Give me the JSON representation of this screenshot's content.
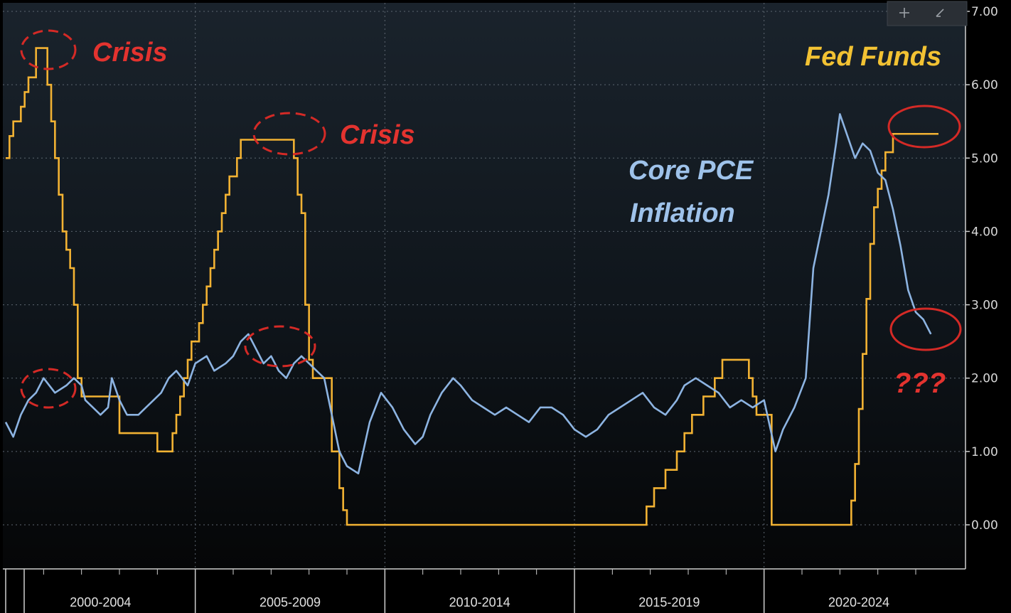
{
  "toolbar": {
    "crosshair_icon": "crosshair-icon",
    "zoom_icon": "zoom-icon"
  },
  "chart_data": {
    "type": "line",
    "title": "",
    "xlabel": "",
    "ylabel": "",
    "x_range": [
      2000.0,
      2024.6
    ],
    "ylim": [
      -0.6,
      7.0
    ],
    "y_ticks": [
      "0.00",
      "1.00",
      "2.00",
      "3.00",
      "4.00",
      "5.00",
      "6.00",
      "7.00"
    ],
    "x_periods": [
      "2000-2004",
      "2005-2009",
      "2010-2014",
      "2015-2019",
      "2020-2024"
    ],
    "grid": true,
    "series": [
      {
        "name": "Fed Funds",
        "color": "#f2b233",
        "x": [
          2000.0,
          2000.1,
          2000.2,
          2000.4,
          2000.5,
          2000.6,
          2000.8,
          2001.0,
          2001.1,
          2001.2,
          2001.3,
          2001.4,
          2001.5,
          2001.6,
          2001.7,
          2001.8,
          2001.9,
          2002.0,
          2002.8,
          2003.0,
          2003.5,
          2004.0,
          2004.3,
          2004.4,
          2004.5,
          2004.6,
          2004.7,
          2004.8,
          2004.9,
          2005.0,
          2005.1,
          2005.2,
          2005.3,
          2005.4,
          2005.5,
          2005.6,
          2005.7,
          2005.8,
          2005.9,
          2006.0,
          2006.1,
          2006.2,
          2006.3,
          2006.4,
          2006.5,
          2007.6,
          2007.7,
          2007.8,
          2007.9,
          2008.0,
          2008.1,
          2008.2,
          2008.3,
          2008.6,
          2008.8,
          2008.9,
          2009.0,
          2015.9,
          2016.9,
          2017.1,
          2017.4,
          2017.7,
          2017.9,
          2018.1,
          2018.4,
          2018.7,
          2018.9,
          2019.5,
          2019.6,
          2019.7,
          2019.8,
          2020.1,
          2020.2,
          2022.2,
          2022.3,
          2022.4,
          2022.5,
          2022.6,
          2022.7,
          2022.8,
          2022.9,
          2023.0,
          2023.1,
          2023.2,
          2023.4,
          2023.6,
          2024.6
        ],
        "values": [
          5.0,
          5.3,
          5.5,
          5.7,
          5.9,
          6.1,
          6.5,
          6.5,
          6.0,
          5.5,
          5.0,
          4.5,
          4.0,
          3.75,
          3.5,
          3.0,
          2.0,
          1.75,
          1.75,
          1.25,
          1.25,
          1.0,
          1.0,
          1.25,
          1.5,
          1.75,
          2.0,
          2.25,
          2.5,
          2.5,
          2.75,
          3.0,
          3.25,
          3.5,
          3.75,
          4.0,
          4.25,
          4.5,
          4.75,
          4.75,
          5.0,
          5.25,
          5.25,
          5.25,
          5.25,
          5.0,
          4.5,
          4.25,
          3.0,
          2.25,
          2.0,
          2.0,
          2.0,
          1.0,
          0.5,
          0.2,
          0.0,
          0.0,
          0.25,
          0.5,
          0.75,
          1.0,
          1.25,
          1.5,
          1.75,
          2.0,
          2.25,
          2.25,
          2.0,
          1.75,
          1.5,
          1.5,
          0.0,
          0.0,
          0.33,
          0.83,
          1.58,
          2.33,
          3.08,
          3.83,
          4.33,
          4.58,
          4.83,
          5.08,
          5.33,
          5.33,
          5.33
        ]
      },
      {
        "name": "Core PCE Inflation",
        "color": "#8db4e2",
        "x": [
          2000.0,
          2000.2,
          2000.4,
          2000.6,
          2000.8,
          2001.0,
          2001.3,
          2001.6,
          2001.8,
          2002.0,
          2002.1,
          2002.3,
          2002.5,
          2002.7,
          2002.8,
          2003.0,
          2003.2,
          2003.5,
          2003.7,
          2003.9,
          2004.1,
          2004.3,
          2004.5,
          2004.8,
          2005.0,
          2005.3,
          2005.5,
          2005.8,
          2006.0,
          2006.2,
          2006.4,
          2006.6,
          2006.8,
          2007.0,
          2007.2,
          2007.4,
          2007.6,
          2007.8,
          2008.0,
          2008.2,
          2008.4,
          2008.6,
          2008.8,
          2009.0,
          2009.3,
          2009.6,
          2009.9,
          2010.2,
          2010.5,
          2010.8,
          2011.0,
          2011.2,
          2011.5,
          2011.8,
          2012.0,
          2012.3,
          2012.6,
          2012.9,
          2013.2,
          2013.5,
          2013.8,
          2014.1,
          2014.4,
          2014.7,
          2015.0,
          2015.3,
          2015.6,
          2015.9,
          2016.2,
          2016.5,
          2016.8,
          2017.1,
          2017.4,
          2017.7,
          2017.9,
          2018.2,
          2018.5,
          2018.8,
          2019.1,
          2019.4,
          2019.7,
          2020.0,
          2020.3,
          2020.5,
          2020.8,
          2021.1,
          2021.3,
          2021.5,
          2021.7,
          2021.9,
          2022.0,
          2022.2,
          2022.4,
          2022.6,
          2022.8,
          2023.0,
          2023.2,
          2023.4,
          2023.6,
          2023.8,
          2024.0,
          2024.2,
          2024.4
        ],
        "values": [
          1.4,
          1.2,
          1.5,
          1.7,
          1.8,
          2.0,
          1.8,
          1.9,
          2.0,
          1.9,
          1.7,
          1.6,
          1.5,
          1.6,
          2.0,
          1.7,
          1.5,
          1.5,
          1.6,
          1.7,
          1.8,
          2.0,
          2.1,
          1.9,
          2.2,
          2.3,
          2.1,
          2.2,
          2.3,
          2.5,
          2.6,
          2.4,
          2.2,
          2.3,
          2.1,
          2.0,
          2.2,
          2.3,
          2.2,
          2.1,
          2.0,
          1.5,
          1.0,
          0.8,
          0.7,
          1.4,
          1.8,
          1.6,
          1.3,
          1.1,
          1.2,
          1.5,
          1.8,
          2.0,
          1.9,
          1.7,
          1.6,
          1.5,
          1.6,
          1.5,
          1.4,
          1.6,
          1.6,
          1.5,
          1.3,
          1.2,
          1.3,
          1.5,
          1.6,
          1.7,
          1.8,
          1.6,
          1.5,
          1.7,
          1.9,
          2.0,
          1.9,
          1.8,
          1.6,
          1.7,
          1.6,
          1.7,
          1.0,
          1.3,
          1.6,
          2.0,
          3.5,
          4.0,
          4.5,
          5.2,
          5.6,
          5.3,
          5.0,
          5.2,
          5.1,
          4.8,
          4.7,
          4.3,
          3.8,
          3.2,
          2.9,
          2.8,
          2.6
        ]
      }
    ],
    "annotations": [
      {
        "text": "Crisis",
        "color": "#e3332f"
      },
      {
        "text": "Crisis",
        "color": "#e3332f"
      },
      {
        "text": "Fed Funds",
        "color": "#f2c233"
      },
      {
        "text": "Core PCE",
        "color": "#9ec2ea"
      },
      {
        "text": "Inflation",
        "color": "#9ec2ea"
      },
      {
        "text": "???",
        "color": "#e3332f"
      }
    ]
  }
}
